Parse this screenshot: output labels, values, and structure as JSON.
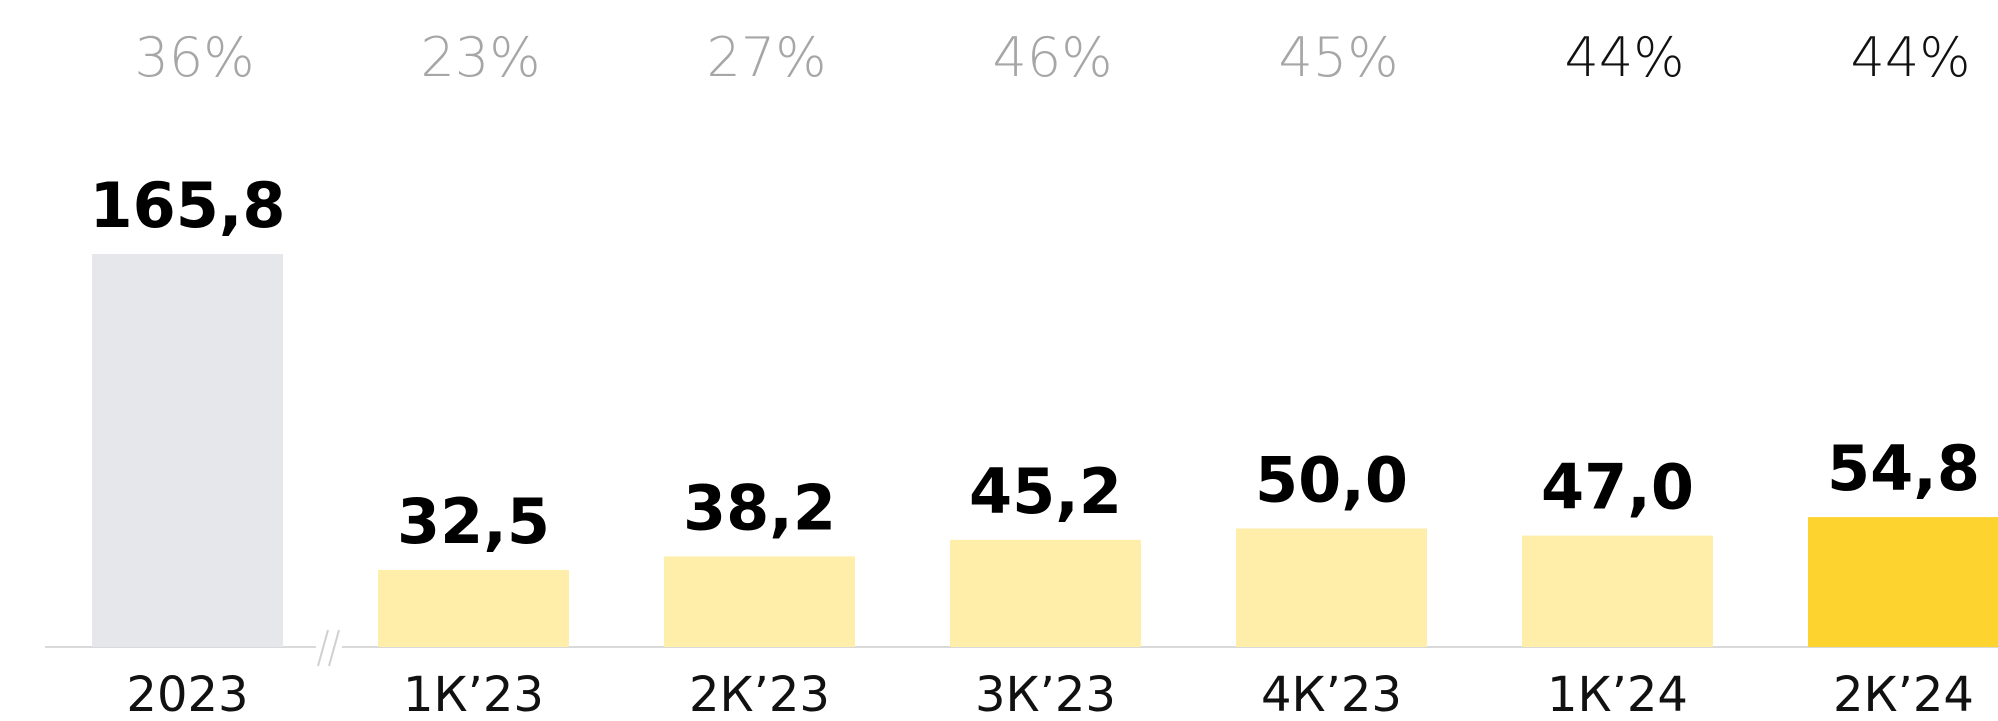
{
  "chart_data": {
    "type": "bar",
    "categories": [
      "2023",
      "1К’23",
      "2К’23",
      "3К’23",
      "4К’23",
      "1К’24",
      "2К’24"
    ],
    "values": [
      165.8,
      32.5,
      38.2,
      45.2,
      50.0,
      47.0,
      54.8
    ],
    "value_labels": [
      "165,8",
      "32,5",
      "38,2",
      "45,2",
      "50,0",
      "47,0",
      "54,8"
    ],
    "colors": [
      "#e6e7eb",
      "#feeeaa",
      "#feeeaa",
      "#feeeaa",
      "#feeeaa",
      "#feeeaa",
      "#fdd32f"
    ],
    "shares": {
      "values": [
        36,
        23,
        27,
        46,
        45,
        44,
        44
      ],
      "value_labels": [
        "36%",
        "23%",
        "27%",
        "46%",
        "45%",
        "44%",
        "44%"
      ],
      "colors": [
        "#a6a6a6",
        "#a6a6a6",
        "#a6a6a6",
        "#a6a6a6",
        "#a6a6a6",
        "#111111",
        "#111111"
      ]
    }
  }
}
